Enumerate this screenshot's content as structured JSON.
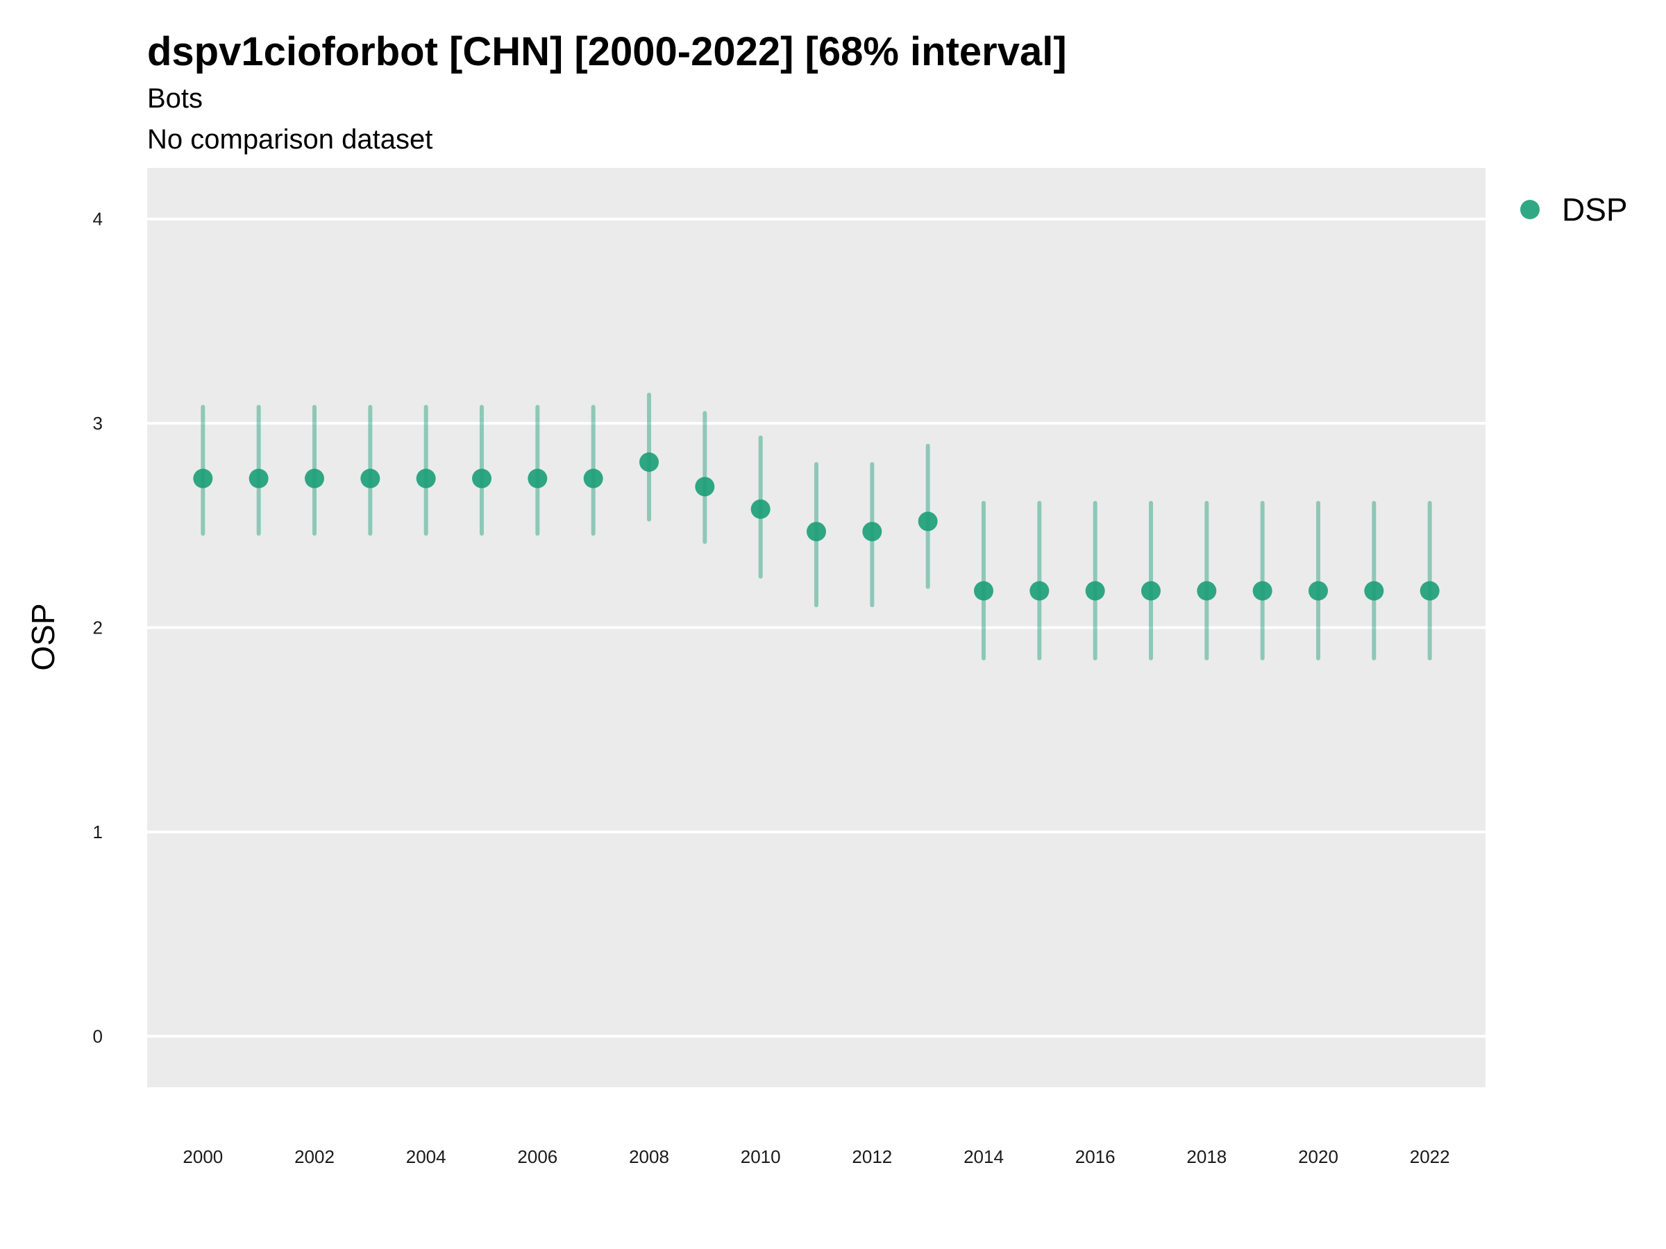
{
  "title": "dspv1cioforbot [CHN] [2000-2022] [68% interval]",
  "subtitle1": "Bots",
  "subtitle2": "No comparison dataset",
  "colors": {
    "series": "#1b9e77",
    "panel": "#ebebeb",
    "grid": "#ffffff"
  },
  "chart_data": {
    "type": "scatter",
    "title": "dspv1cioforbot [CHN] [2000-2022] [68% interval]",
    "subtitle": [
      "Bots",
      "No comparison dataset"
    ],
    "xlabel": "",
    "ylabel": "OSP",
    "xlim": [
      1999.0,
      2023.0
    ],
    "ylim": [
      -0.25,
      4.25
    ],
    "x_ticks": [
      "2000",
      "2002",
      "2004",
      "2006",
      "2008",
      "2010",
      "2012",
      "2014",
      "2016",
      "2018",
      "2020",
      "2022"
    ],
    "y_ticks": [
      "0",
      "1",
      "2",
      "3",
      "4"
    ],
    "grid": "major horizontal only",
    "legend_position": "top-right",
    "series": [
      {
        "name": "DSP",
        "x": [
          2000,
          2001,
          2002,
          2003,
          2004,
          2005,
          2006,
          2007,
          2008,
          2009,
          2010,
          2011,
          2012,
          2013,
          2014,
          2015,
          2016,
          2017,
          2018,
          2019,
          2020,
          2021,
          2022
        ],
        "y": [
          2.73,
          2.73,
          2.73,
          2.73,
          2.73,
          2.73,
          2.73,
          2.73,
          2.81,
          2.69,
          2.58,
          2.47,
          2.47,
          2.52,
          2.18,
          2.18,
          2.18,
          2.18,
          2.18,
          2.18,
          2.18,
          2.18,
          2.18
        ],
        "lower": [
          2.46,
          2.46,
          2.46,
          2.46,
          2.46,
          2.46,
          2.46,
          2.46,
          2.53,
          2.42,
          2.25,
          2.11,
          2.11,
          2.2,
          1.85,
          1.85,
          1.85,
          1.85,
          1.85,
          1.85,
          1.85,
          1.85,
          1.85
        ],
        "upper": [
          3.08,
          3.08,
          3.08,
          3.08,
          3.08,
          3.08,
          3.08,
          3.08,
          3.14,
          3.05,
          2.93,
          2.8,
          2.8,
          2.89,
          2.61,
          2.61,
          2.61,
          2.61,
          2.61,
          2.61,
          2.61,
          2.61,
          2.61
        ]
      }
    ]
  }
}
